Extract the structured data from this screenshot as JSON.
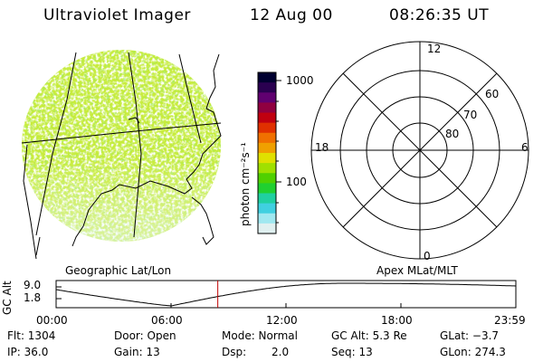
{
  "header": {
    "instrument": "Ultraviolet Imager",
    "date": "12 Aug 00",
    "time": "08:26:35 UT"
  },
  "colorbar": {
    "unit_label": "photon cm⁻²s⁻¹",
    "ticks": [
      "1000",
      "100"
    ],
    "colors": [
      "#000030",
      "#2a0050",
      "#600070",
      "#900040",
      "#c00010",
      "#e03000",
      "#f07000",
      "#f0a000",
      "#e0e000",
      "#a0e000",
      "#50d000",
      "#20d030",
      "#20d0a0",
      "#40d0e0",
      "#a0e8f0",
      "#e0f0f0"
    ]
  },
  "left_panel": {
    "label": "Geographic Lat/Lon"
  },
  "right_panel": {
    "label": "Apex MLat/MLT",
    "mlt_labels": {
      "top": "12",
      "left": "18",
      "right": "6",
      "bottom": "0"
    },
    "lat_labels": [
      "60",
      "70",
      "80"
    ]
  },
  "altitude_plot": {
    "ylabel": "GC Alt",
    "yticks": [
      "9.0",
      "1.8"
    ],
    "xticks": [
      "00:00",
      "06:00",
      "12:00",
      "18:00",
      "23:59"
    ],
    "current_time_marker_hours": 8.44,
    "marker_color": "#c00000"
  },
  "info": {
    "flt": "Flt: 1304",
    "ip": "IP: 36.0",
    "door": "Door: Open",
    "gain": "Gain: 13",
    "mode": "Mode: Normal",
    "dsp_label": "Dsp:",
    "dsp_value": "2.0",
    "gc_alt": "GC Alt: 5.3 Re",
    "seq": "Seq: 13",
    "glat": "GLat:  −3.7",
    "glon": "GLon: 274.3"
  }
}
